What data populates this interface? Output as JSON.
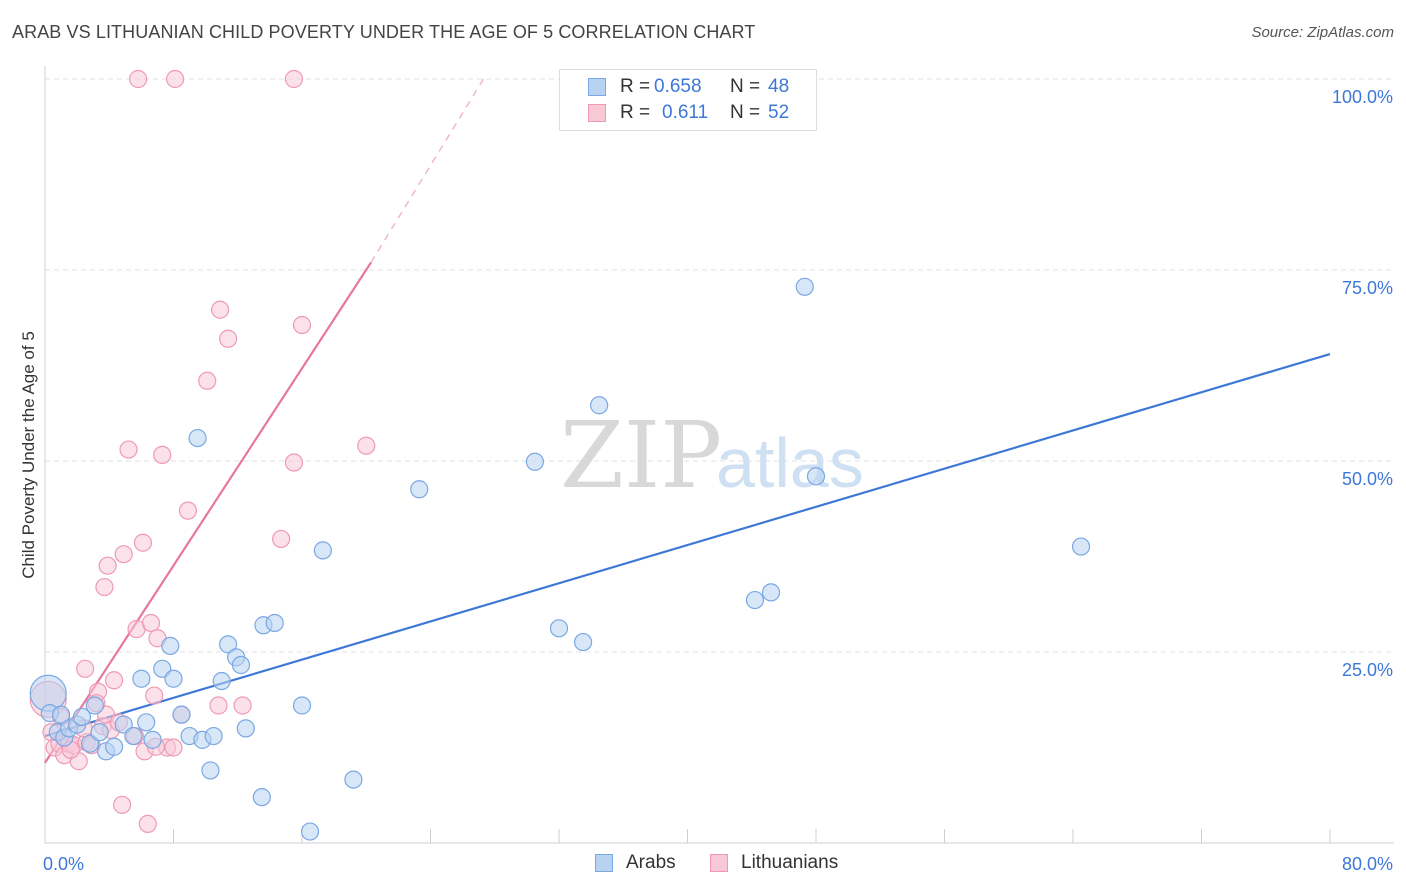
{
  "header": {
    "title": "ARAB VS LITHUANIAN CHILD POVERTY UNDER THE AGE OF 5 CORRELATION CHART",
    "source": "Source: ZipAtlas.com"
  },
  "watermark": {
    "zip": "ZIP",
    "atlas": "atlas"
  },
  "legend": {
    "arabs": {
      "r_label": "R =",
      "r_value": "0.658",
      "n_label": "N =",
      "n_value": "48"
    },
    "lithuanians": {
      "r_label": "R =",
      "r_value": "0.611",
      "n_label": "N =",
      "n_value": "52"
    }
  },
  "bottom_legend": {
    "arabs": "Arabs",
    "lithuanians": "Lithuanians"
  },
  "colors": {
    "arabs_fill": "#b8d3f2",
    "arabs_stroke": "#7aa8e2",
    "arabs_line": "#3d78d8",
    "lith_fill": "#f8c8d7",
    "lith_stroke": "#ef9ab5",
    "lith_line": "#e8779e",
    "axis_label": "#3d78d8",
    "grid": "#e2e2e2"
  },
  "chart_data": {
    "type": "scatter",
    "title": "ARAB VS LITHUANIAN CHILD POVERTY UNDER THE AGE OF 5 CORRELATION CHART",
    "xlabel": "",
    "ylabel": "Child Poverty Under the Age of 5",
    "xlim": [
      0,
      80
    ],
    "ylim": [
      0,
      100
    ],
    "x_tick_labels": [
      {
        "value": 0,
        "label": "0.0%"
      },
      {
        "value": 80,
        "label": "80.0%"
      }
    ],
    "y_tick_labels": [
      {
        "value": 25,
        "label": "25.0%"
      },
      {
        "value": 50,
        "label": "50.0%"
      },
      {
        "value": 75,
        "label": "75.0%"
      },
      {
        "value": 100,
        "label": "100.0%"
      }
    ],
    "series": [
      {
        "name": "Arabs",
        "r": 0.658,
        "n": 48,
        "trend": {
          "x": [
            0,
            80
          ],
          "y": [
            14.0,
            64.0
          ],
          "dashed_extension": false
        },
        "points": [
          {
            "x": 0.2,
            "y": 19.6,
            "big": true
          },
          {
            "x": 0.3,
            "y": 17.0
          },
          {
            "x": 0.8,
            "y": 14.5
          },
          {
            "x": 1.2,
            "y": 13.8
          },
          {
            "x": 1.5,
            "y": 15.0
          },
          {
            "x": 1.0,
            "y": 16.8
          },
          {
            "x": 2.0,
            "y": 15.5
          },
          {
            "x": 2.3,
            "y": 16.5
          },
          {
            "x": 2.8,
            "y": 13.0
          },
          {
            "x": 3.1,
            "y": 18.0
          },
          {
            "x": 3.4,
            "y": 14.5
          },
          {
            "x": 3.8,
            "y": 12.0
          },
          {
            "x": 4.3,
            "y": 12.6
          },
          {
            "x": 4.9,
            "y": 15.5
          },
          {
            "x": 5.5,
            "y": 14.0
          },
          {
            "x": 6.0,
            "y": 21.5
          },
          {
            "x": 6.3,
            "y": 15.8
          },
          {
            "x": 6.7,
            "y": 13.5
          },
          {
            "x": 7.3,
            "y": 22.8
          },
          {
            "x": 7.8,
            "y": 25.8
          },
          {
            "x": 8.0,
            "y": 21.5
          },
          {
            "x": 8.5,
            "y": 16.8
          },
          {
            "x": 9.0,
            "y": 14.0
          },
          {
            "x": 9.5,
            "y": 53.0
          },
          {
            "x": 9.8,
            "y": 13.5
          },
          {
            "x": 10.3,
            "y": 9.5
          },
          {
            "x": 10.5,
            "y": 14.0
          },
          {
            "x": 11.0,
            "y": 21.2
          },
          {
            "x": 11.4,
            "y": 26.0
          },
          {
            "x": 11.9,
            "y": 24.3
          },
          {
            "x": 12.2,
            "y": 23.3
          },
          {
            "x": 12.5,
            "y": 15.0
          },
          {
            "x": 13.5,
            "y": 6.0
          },
          {
            "x": 13.6,
            "y": 28.5
          },
          {
            "x": 14.3,
            "y": 28.8
          },
          {
            "x": 16.0,
            "y": 18.0
          },
          {
            "x": 16.5,
            "y": 1.5
          },
          {
            "x": 17.3,
            "y": 38.3
          },
          {
            "x": 19.2,
            "y": 8.3
          },
          {
            "x": 23.3,
            "y": 46.3
          },
          {
            "x": 30.5,
            "y": 49.9
          },
          {
            "x": 32.0,
            "y": 28.1
          },
          {
            "x": 33.5,
            "y": 26.3
          },
          {
            "x": 34.5,
            "y": 57.3
          },
          {
            "x": 44.2,
            "y": 31.8
          },
          {
            "x": 45.2,
            "y": 32.8
          },
          {
            "x": 47.3,
            "y": 72.8
          },
          {
            "x": 48.0,
            "y": 48.0
          },
          {
            "x": 64.5,
            "y": 38.8
          }
        ]
      },
      {
        "name": "Lithuanians",
        "r": 0.611,
        "n": 52,
        "trend": {
          "x": [
            0,
            20.3
          ],
          "y": [
            10.5,
            76.0
          ],
          "dashed_to": [
            27.3,
            100.0
          ]
        },
        "points": [
          {
            "x": 0.2,
            "y": 18.8,
            "big": true
          },
          {
            "x": 0.4,
            "y": 14.5
          },
          {
            "x": 0.6,
            "y": 12.5
          },
          {
            "x": 0.9,
            "y": 13.0
          },
          {
            "x": 1.2,
            "y": 11.5
          },
          {
            "x": 1.5,
            "y": 13.0
          },
          {
            "x": 1.8,
            "y": 12.8
          },
          {
            "x": 2.1,
            "y": 10.7
          },
          {
            "x": 2.5,
            "y": 22.8
          },
          {
            "x": 2.6,
            "y": 13.2
          },
          {
            "x": 2.9,
            "y": 12.8
          },
          {
            "x": 3.3,
            "y": 19.8
          },
          {
            "x": 3.6,
            "y": 15.3
          },
          {
            "x": 3.8,
            "y": 16.8
          },
          {
            "x": 4.1,
            "y": 14.8
          },
          {
            "x": 4.3,
            "y": 21.3
          },
          {
            "x": 3.2,
            "y": 18.3
          },
          {
            "x": 3.7,
            "y": 33.5
          },
          {
            "x": 3.9,
            "y": 36.3
          },
          {
            "x": 4.6,
            "y": 15.8
          },
          {
            "x": 4.8,
            "y": 5.0
          },
          {
            "x": 4.9,
            "y": 37.8
          },
          {
            "x": 5.2,
            "y": 51.5
          },
          {
            "x": 5.6,
            "y": 14.0
          },
          {
            "x": 5.7,
            "y": 28.0
          },
          {
            "x": 6.1,
            "y": 39.3
          },
          {
            "x": 6.2,
            "y": 12.0
          },
          {
            "x": 6.4,
            "y": 2.5
          },
          {
            "x": 6.6,
            "y": 28.8
          },
          {
            "x": 6.8,
            "y": 19.3
          },
          {
            "x": 7.0,
            "y": 26.8
          },
          {
            "x": 7.3,
            "y": 50.8
          },
          {
            "x": 7.6,
            "y": 12.5
          },
          {
            "x": 8.0,
            "y": 12.5
          },
          {
            "x": 8.5,
            "y": 16.8
          },
          {
            "x": 8.9,
            "y": 43.5
          },
          {
            "x": 10.1,
            "y": 60.5
          },
          {
            "x": 10.8,
            "y": 18.0
          },
          {
            "x": 10.9,
            "y": 69.8
          },
          {
            "x": 11.4,
            "y": 66.0
          },
          {
            "x": 12.3,
            "y": 18.0
          },
          {
            "x": 14.7,
            "y": 39.8
          },
          {
            "x": 15.5,
            "y": 49.8
          },
          {
            "x": 16.0,
            "y": 67.8
          },
          {
            "x": 20.0,
            "y": 52.0
          },
          {
            "x": 6.9,
            "y": 12.6
          },
          {
            "x": 2.4,
            "y": 15.0
          },
          {
            "x": 1.0,
            "y": 16.5
          },
          {
            "x": 5.8,
            "y": 100.0
          },
          {
            "x": 8.1,
            "y": 100.0
          },
          {
            "x": 15.5,
            "y": 100.0
          },
          {
            "x": 1.6,
            "y": 12.2
          }
        ]
      }
    ]
  }
}
